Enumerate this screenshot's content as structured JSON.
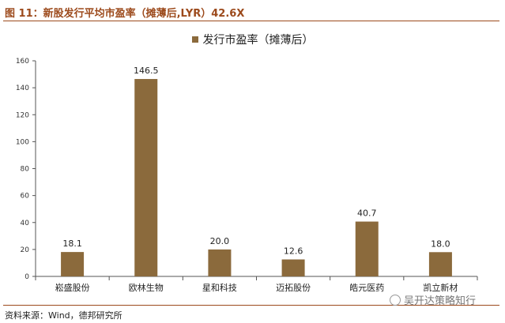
{
  "figure": {
    "title": "图 11：新股发行平均市盈率（摊薄后,LYR）42.6X",
    "source": "资料来源：Wind，德邦研究所",
    "watermark": "吴开达策略知行"
  },
  "colors": {
    "accent": "#9c4a1c",
    "bar": "#8b6a3c",
    "axis": "#555555"
  },
  "chart_data": {
    "type": "bar",
    "categories": [
      "崧盛股份",
      "欧林生物",
      "星和科技",
      "迈拓股份",
      "皓元医药",
      "凯立新材"
    ],
    "series": [
      {
        "name": "发行市盈率（摊薄后）",
        "values": [
          18.1,
          146.5,
          20.0,
          12.6,
          40.7,
          18.0
        ]
      }
    ],
    "data_labels": [
      "18.1",
      "146.5",
      "20.0",
      "12.6",
      "40.7",
      "18.0"
    ],
    "ylim": [
      0,
      160
    ],
    "yticks": [
      0,
      20,
      40,
      60,
      80,
      100,
      120,
      140,
      160
    ],
    "legend_position": "top-center",
    "grid": false,
    "xlabel": "",
    "ylabel": ""
  }
}
